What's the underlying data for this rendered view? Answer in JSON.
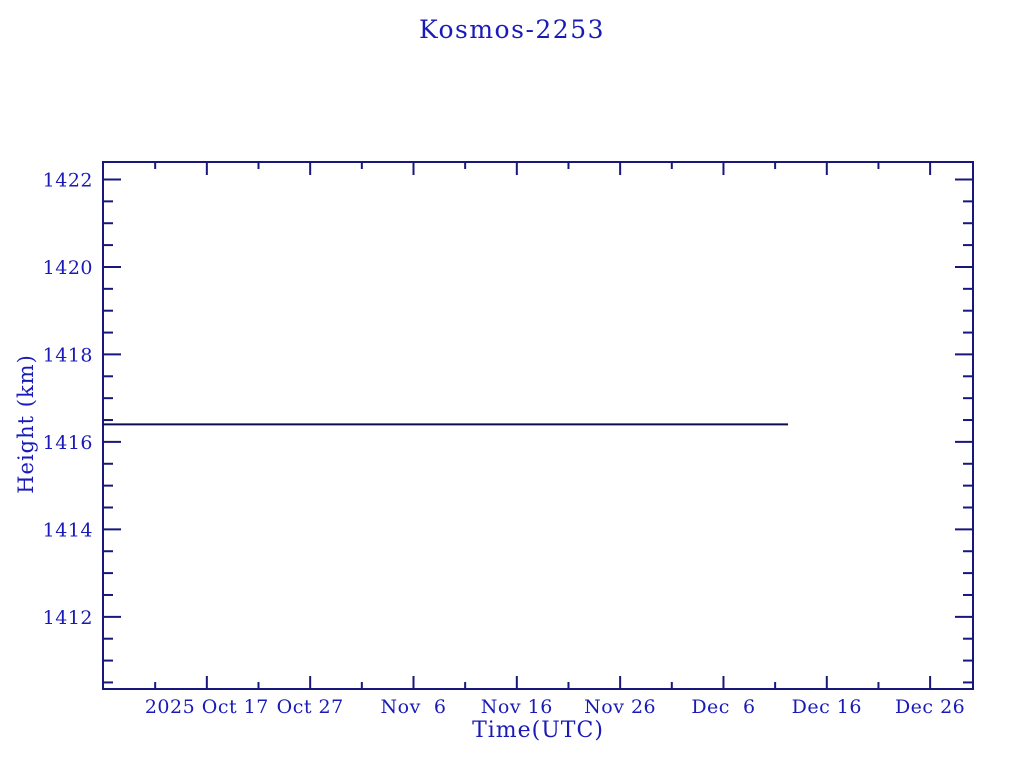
{
  "colors": {
    "background": "#ffffff",
    "text": "#1a1ab8",
    "axis": "#17177c",
    "data_line": "#0c0c52"
  },
  "chart_data": {
    "type": "line",
    "title": "Kosmos-2253",
    "xlabel": "Time(UTC)",
    "ylabel": "Height (km)",
    "grid": "off",
    "legend": "none",
    "x_axis": {
      "major_tick_labels": [
        "2025 Oct 17",
        "Oct 27",
        "Nov  6",
        "Nov 16",
        "Nov 26",
        "Dec  6",
        "Dec 16",
        "Dec 26"
      ],
      "major_spacing_days": 10,
      "minor_spacing_days": 5,
      "first_major_offset_days": 10.05,
      "total_span_days": 84.2
    },
    "y_axis": {
      "min": 1410.35,
      "max": 1422.4,
      "major_ticks": [
        1412,
        1414,
        1416,
        1418,
        1420,
        1422
      ],
      "minor_step": 0.5
    },
    "series": [
      {
        "name": "height",
        "start_day_offset": 0,
        "end_day_offset": 66.3,
        "value_km": 1416.4,
        "description": "flat constant-height line at ~1416.4 km ending about 2 days before the Dec 16 tick region"
      }
    ]
  }
}
